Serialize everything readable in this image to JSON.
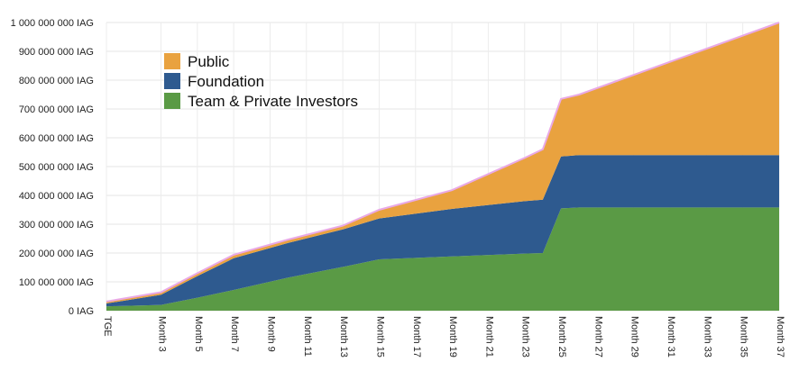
{
  "chart_data": {
    "type": "area",
    "stacked": true,
    "title": "",
    "xlabel": "",
    "ylabel": "",
    "ylim": [
      0,
      1000000000
    ],
    "y_ticks": [
      {
        "value": 0,
        "label": "0 IAG"
      },
      {
        "value": 100000000,
        "label": "100 000 000 IAG"
      },
      {
        "value": 200000000,
        "label": "200 000 000 IAG"
      },
      {
        "value": 300000000,
        "label": "300 000 000 IAG"
      },
      {
        "value": 400000000,
        "label": "400 000 000 IAG"
      },
      {
        "value": 500000000,
        "label": "500 000 000 IAG"
      },
      {
        "value": 600000000,
        "label": "600 000 000 IAG"
      },
      {
        "value": 700000000,
        "label": "700 000 000 IAG"
      },
      {
        "value": 800000000,
        "label": "800 000 000 IAG"
      },
      {
        "value": 900000000,
        "label": "900 000 000 IAG"
      },
      {
        "value": 1000000000,
        "label": "1 000 000 000 IAG"
      }
    ],
    "x_ticks": [
      "TGE",
      "Month 3",
      "Month 5",
      "Month 7",
      "Month 9",
      "Month 11",
      "Month 13",
      "Month 15",
      "Month 17",
      "Month 19",
      "Month 21",
      "Month 23",
      "Month 25",
      "Month 27",
      "Month 29",
      "Month 31",
      "Month 33",
      "Month 35",
      "Month 37"
    ],
    "x_months": [
      0,
      3,
      5,
      7,
      10,
      13,
      15,
      19,
      23,
      24,
      25,
      26,
      37
    ],
    "grid": true,
    "legend_position": "top-left",
    "series": [
      {
        "name": "Team & Private Investors",
        "color": "#5a9a45",
        "values": [
          15000000,
          20000000,
          45000000,
          72000000,
          115000000,
          152000000,
          178000000,
          188000000,
          198000000,
          200000000,
          355000000,
          358000000,
          358000000
        ]
      },
      {
        "name": "Foundation",
        "color": "#2e5a8f",
        "values": [
          10000000,
          35000000,
          75000000,
          110000000,
          120000000,
          130000000,
          142000000,
          165000000,
          182000000,
          185000000,
          180000000,
          182000000,
          182000000
        ]
      },
      {
        "name": "Public",
        "color": "#e9a23f",
        "values": [
          7000000,
          9000000,
          10000000,
          12000000,
          12000000,
          13000000,
          30000000,
          65000000,
          150000000,
          175000000,
          200000000,
          210000000,
          460000000
        ]
      }
    ]
  }
}
